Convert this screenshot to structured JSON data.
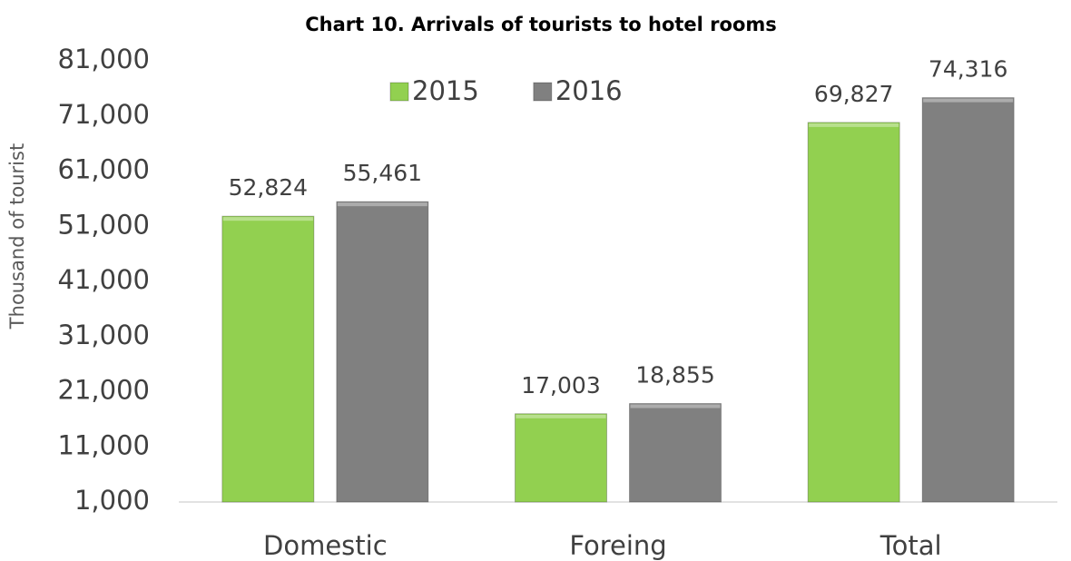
{
  "chart_data": {
    "type": "bar",
    "title": "Chart 10. Arrivals of tourists to hotel rooms",
    "y_label": "Thousand of tourist",
    "categories": [
      "Domestic",
      "Foreing",
      "Total"
    ],
    "series": [
      {
        "name": "2015",
        "color": "#92d050",
        "values": [
          52824,
          17003,
          69827
        ],
        "value_labels": [
          "52,824",
          "17,003",
          "69,827"
        ]
      },
      {
        "name": "2016",
        "color": "#808080",
        "values": [
          55461,
          18855,
          74316
        ],
        "value_labels": [
          "55,461",
          "18,855",
          "74,316"
        ]
      }
    ],
    "ylim": [
      1000,
      81000
    ],
    "yticks": [
      {
        "value": 1000,
        "label": "1,000"
      },
      {
        "value": 11000,
        "label": "11,000"
      },
      {
        "value": 21000,
        "label": "21,000"
      },
      {
        "value": 31000,
        "label": "31,000"
      },
      {
        "value": 41000,
        "label": "41,000"
      },
      {
        "value": 51000,
        "label": "51,000"
      },
      {
        "value": 61000,
        "label": "61,000"
      },
      {
        "value": 71000,
        "label": "71,000"
      },
      {
        "value": 81000,
        "label": "81,000"
      }
    ],
    "grid": false,
    "legend": "top"
  }
}
